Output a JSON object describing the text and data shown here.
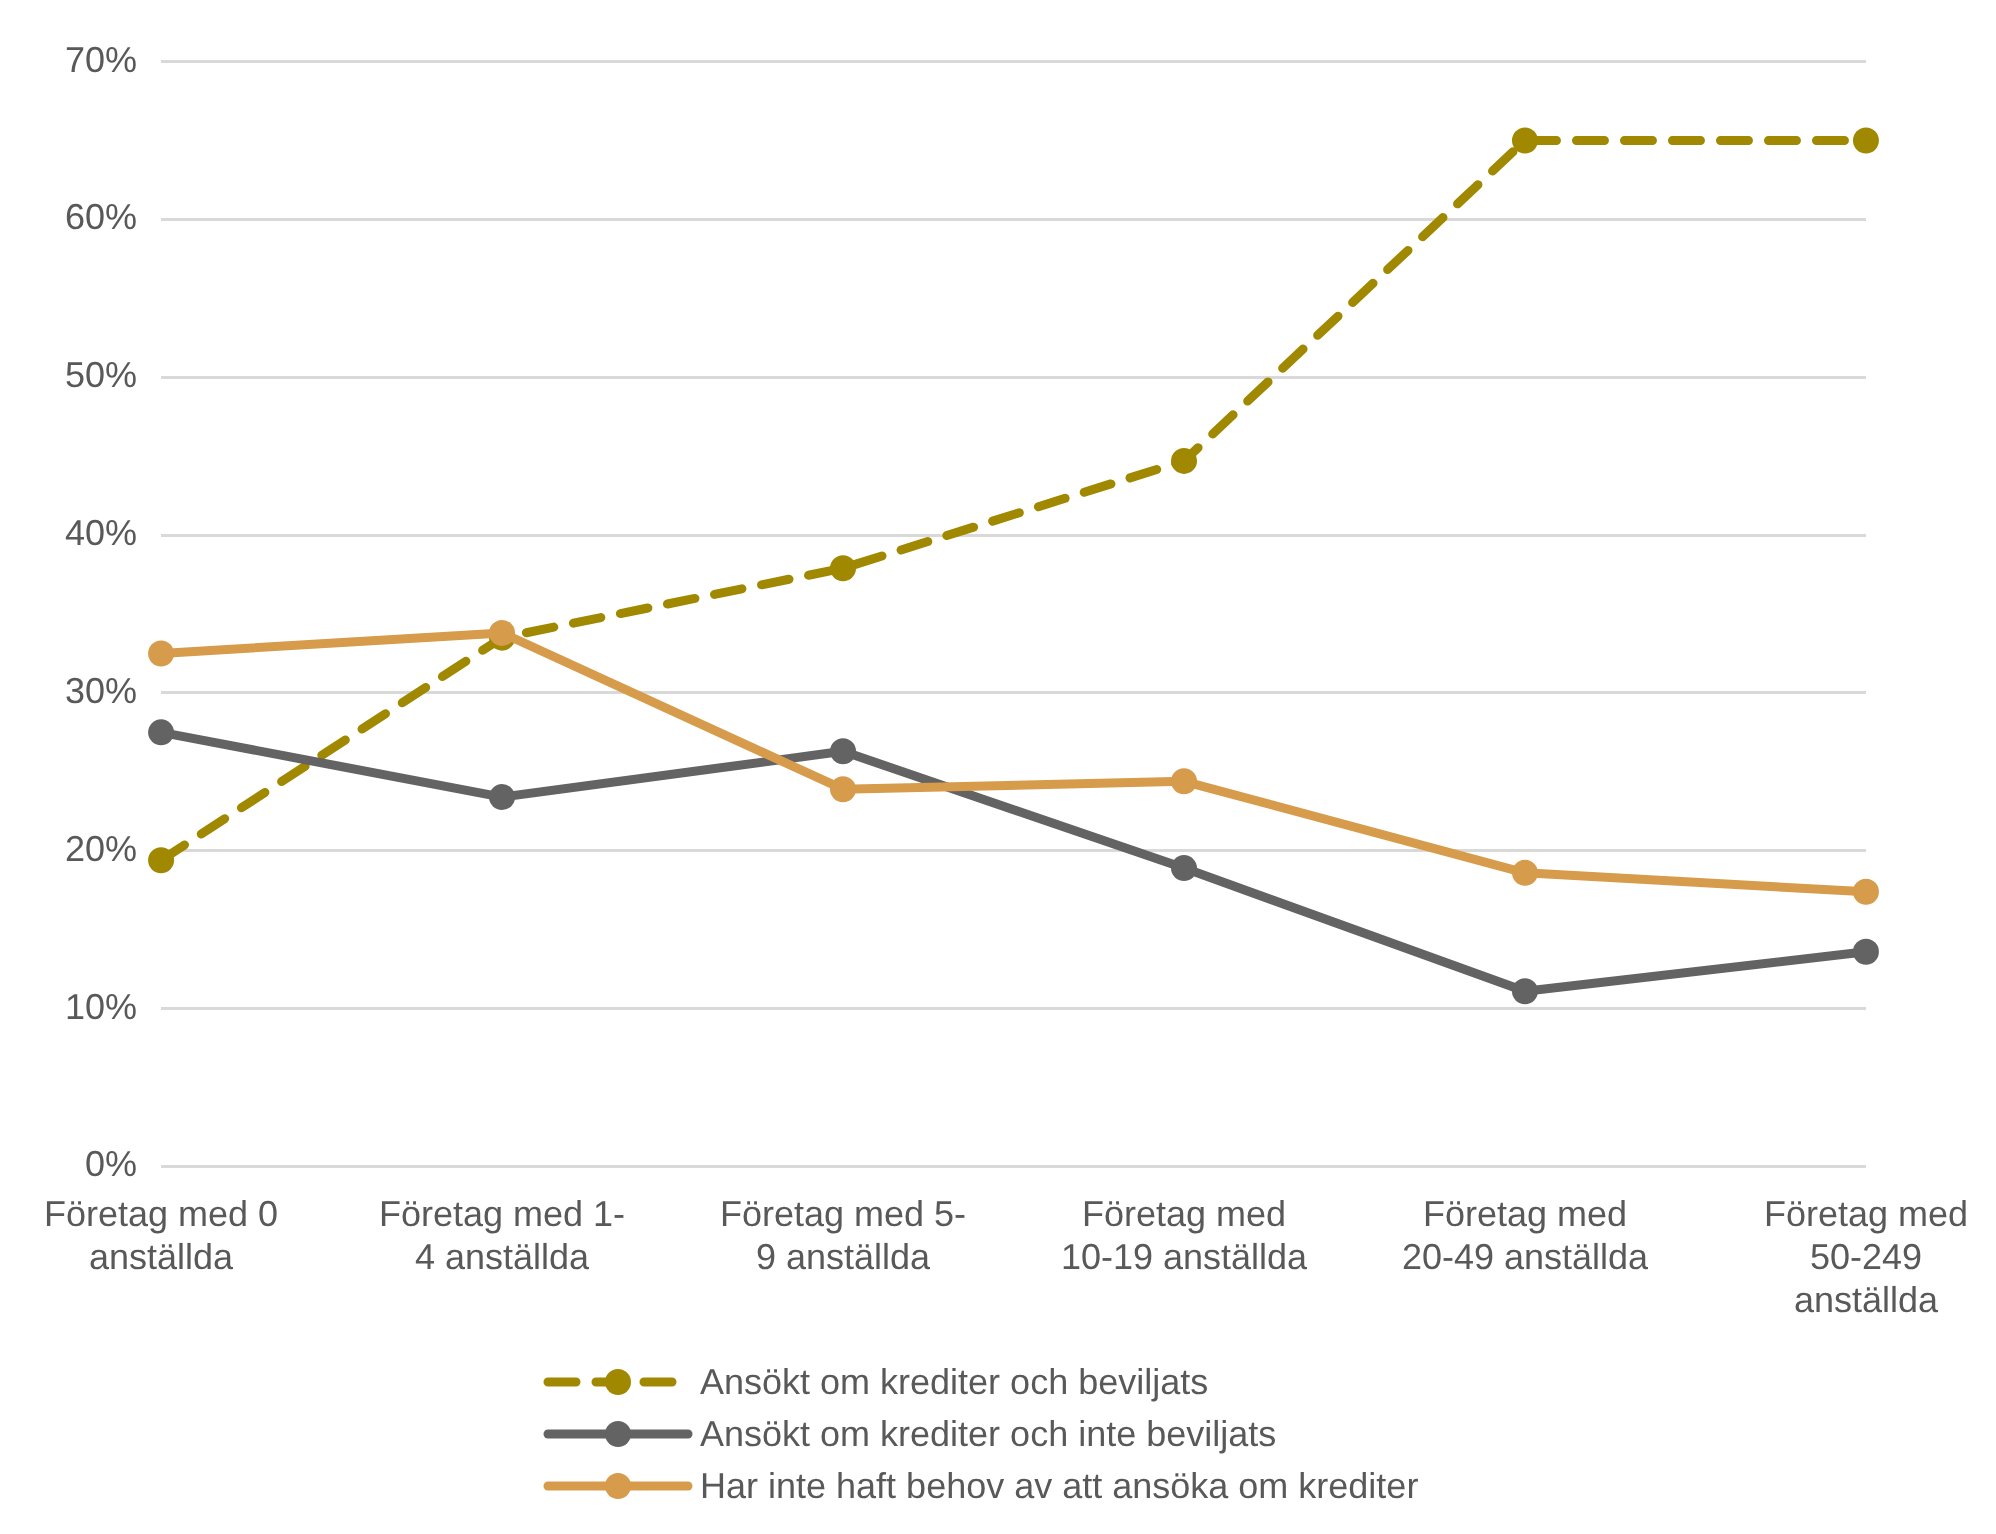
{
  "chart_data": {
    "type": "line",
    "categories": [
      "Företag med 0\nanställda",
      "Företag med 1-\n4 anställda",
      "Företag med 5-\n9 anställda",
      "Företag med\n10-19 anställda",
      "Företag med\n20-49 anställda",
      "Företag med\n50-249\nanställda"
    ],
    "series": [
      {
        "name": "Ansökt om krediter och beviljats",
        "color": "#a08800",
        "line_style": "dashed",
        "values": [
          0.194,
          0.335,
          0.379,
          0.447,
          0.65,
          0.65
        ]
      },
      {
        "name": "Ansökt om krediter och inte beviljats",
        "color": "#636363",
        "line_style": "solid",
        "values": [
          0.275,
          0.234,
          0.263,
          0.189,
          0.111,
          0.136
        ]
      },
      {
        "name": "Har inte haft behov av att ansöka om krediter",
        "color": "#d69b4b",
        "line_style": "solid",
        "values": [
          0.325,
          0.338,
          0.239,
          0.244,
          0.186,
          0.174
        ]
      }
    ],
    "ylim": [
      0,
      0.7
    ],
    "yticks": [
      {
        "value": 0,
        "label": "0%"
      },
      {
        "value": 0.1,
        "label": "10%"
      },
      {
        "value": 0.2,
        "label": "20%"
      },
      {
        "value": 0.3,
        "label": "30%"
      },
      {
        "value": 0.4,
        "label": "40%"
      },
      {
        "value": 0.5,
        "label": "50%"
      },
      {
        "value": 0.6,
        "label": "60%"
      },
      {
        "value": 0.7,
        "label": "70%"
      }
    ],
    "grid": "y",
    "legend": "bottom",
    "marker": "circle"
  }
}
